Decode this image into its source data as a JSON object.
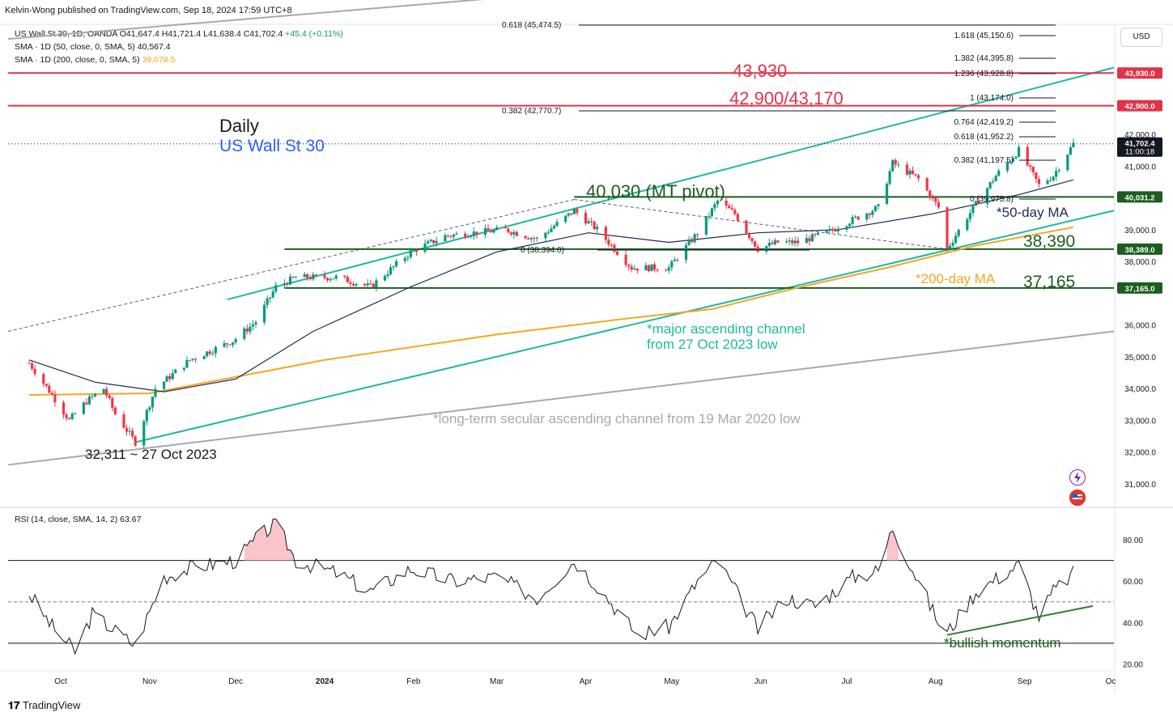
{
  "header": {
    "publisher": "Kelvin-Wong published on TradingView.com, Sep 18, 2024 17:59 UTC+8"
  },
  "legend": {
    "symbol": "US Wall St 30, 1D, OANDA",
    "o": "O41,647.4",
    "h": "H41,721.4",
    "l": "L41,638.4",
    "c": "C41,702.4",
    "chg": "+45.4 (+0.11%)",
    "sma50_label": "SMA · 1D (50, close, 0, SMA, 5)",
    "sma50_value": "40,567.4",
    "sma200_label": "SMA · 1D (200, close, 0, SMA, 5)",
    "sma200_value": "39,078.5",
    "rsi_label": "RSI (14, close, SMA, 14, 2)",
    "rsi_value": "63.67"
  },
  "currency": "USD",
  "footer": {
    "brand": "TradingView"
  },
  "colors": {
    "up": "#089981",
    "down": "#f23645",
    "sma50": "#1e2a5a",
    "sma200": "#f5a623",
    "channel": "#1eb8a2",
    "longterm": "#a8a8b0",
    "resistance": "#e0334a",
    "support": "#1b5e20",
    "rsi": "#131722"
  },
  "annotations": {
    "daily": "Daily",
    "instrument": "US Wall St 30",
    "r1": "43,930",
    "r2": "42,900/43,170",
    "pivot": "40,030 (MT pivot)",
    "ma50": "*50-day MA",
    "s1": "38,390",
    "ma200": "*200-day MA",
    "s2": "37,165",
    "channel1": "*major ascending channel",
    "channel2": "from 27 Oct 2023 low",
    "longterm": "*long-term secular ascending channel from 19 Mar 2020 low",
    "low": "32,311 ~ 27 Oct 2023",
    "rsi_note": "*bullish momentum"
  },
  "chart_data": [
    {
      "type": "candlestick",
      "title": "US Wall St 30",
      "x_labels": [
        "Oct",
        "Nov",
        "Dec",
        "2024",
        "Feb",
        "Mar",
        "Apr",
        "May",
        "Jun",
        "Jul",
        "Aug",
        "Sep",
        "Oc"
      ],
      "y_ticks": [
        "42,000.0",
        "41,000.0",
        "39,000.0",
        "38,000.0",
        "36,000.0",
        "35,000.0",
        "34,000.0",
        "33,000.0",
        "32,000.0",
        "31,000.0"
      ],
      "ylim": [
        30500,
        45500
      ],
      "price_path": [
        [
          "2023-09-20",
          34800
        ],
        [
          "2023-09-28",
          33800
        ],
        [
          "2023-10-04",
          33000
        ],
        [
          "2023-10-10",
          33600
        ],
        [
          "2023-10-16",
          34000
        ],
        [
          "2023-10-20",
          33200
        ],
        [
          "2023-10-27",
          32311
        ],
        [
          "2023-11-03",
          34000
        ],
        [
          "2023-11-15",
          34900
        ],
        [
          "2023-11-30",
          35500
        ],
        [
          "2023-12-08",
          36100
        ],
        [
          "2023-12-15",
          37200
        ],
        [
          "2023-12-22",
          37500
        ],
        [
          "2024-01-05",
          37500
        ],
        [
          "2024-01-17",
          37200
        ],
        [
          "2024-01-31",
          38300
        ],
        [
          "2024-02-12",
          38800
        ],
        [
          "2024-02-22",
          38900
        ],
        [
          "2024-03-04",
          39000
        ],
        [
          "2024-03-15",
          38700
        ],
        [
          "2024-03-28",
          39600
        ],
        [
          "2024-04-05",
          39000
        ],
        [
          "2024-04-17",
          37800
        ],
        [
          "2024-04-30",
          37800
        ],
        [
          "2024-05-10",
          38900
        ],
        [
          "2024-05-17",
          39900
        ],
        [
          "2024-05-23",
          39500
        ],
        [
          "2024-05-31",
          38400
        ],
        [
          "2024-06-07",
          38600
        ],
        [
          "2024-06-14",
          38600
        ],
        [
          "2024-06-24",
          38900
        ],
        [
          "2024-07-05",
          39400
        ],
        [
          "2024-07-12",
          39700
        ],
        [
          "2024-07-17",
          41100
        ],
        [
          "2024-07-26",
          40600
        ],
        [
          "2024-08-02",
          39700
        ],
        [
          "2024-08-05",
          38390
        ],
        [
          "2024-08-12",
          39400
        ],
        [
          "2024-08-22",
          40700
        ],
        [
          "2024-08-30",
          41500
        ],
        [
          "2024-09-06",
          40400
        ],
        [
          "2024-09-11",
          40700
        ],
        [
          "2024-09-18",
          41702
        ]
      ],
      "sma50_path": [
        [
          "2023-09-20",
          34900
        ],
        [
          "2023-10-13",
          34200
        ],
        [
          "2023-11-06",
          33900
        ],
        [
          "2023-12-01",
          34300
        ],
        [
          "2023-12-28",
          35800
        ],
        [
          "2024-01-31",
          37200
        ],
        [
          "2024-03-01",
          38300
        ],
        [
          "2024-04-02",
          38900
        ],
        [
          "2024-04-30",
          38600
        ],
        [
          "2024-05-31",
          38900
        ],
        [
          "2024-06-28",
          39000
        ],
        [
          "2024-07-31",
          39500
        ],
        [
          "2024-08-30",
          40100
        ],
        [
          "2024-09-18",
          40567
        ]
      ],
      "sma200_path": [
        [
          "2023-09-20",
          33800
        ],
        [
          "2023-11-01",
          33850
        ],
        [
          "2024-01-01",
          34900
        ],
        [
          "2024-03-01",
          35700
        ],
        [
          "2024-04-15",
          36200
        ],
        [
          "2024-05-15",
          36500
        ],
        [
          "2024-06-15",
          37200
        ],
        [
          "2024-07-15",
          37800
        ],
        [
          "2024-08-15",
          38500
        ],
        [
          "2024-09-18",
          39078
        ]
      ],
      "horizontal_levels": [
        {
          "label": "43,930.0",
          "value": 43930,
          "kind": "resistance"
        },
        {
          "label": "42,900.0",
          "value": 42900,
          "kind": "resistance"
        },
        {
          "label": "40,031.2",
          "value": 40031,
          "kind": "support"
        },
        {
          "label": "38,389.0",
          "value": 38389,
          "kind": "support"
        },
        {
          "label": "37,165.0",
          "value": 37165,
          "kind": "support"
        }
      ],
      "last_price": {
        "label": "41,702.4",
        "countdown": "11:00:18",
        "value": 41702
      },
      "fib_levels_right": [
        "1.618 (45,150.6)",
        "1.382 (44,395.8)",
        "1.236 (43,928.8)",
        "1 (43,174.0)",
        "0.764 (42,419.2)",
        "0.618 (41,952.2)",
        "0.382 (41,197.5)",
        "0 (39,975.8)"
      ],
      "fib_levels_left": [
        "0.618 (45,474.5)",
        "0.382 (42,770.7)",
        "0 (38,394.0)"
      ]
    },
    {
      "type": "line",
      "title": "RSI (14, close, SMA, 14, 2)",
      "y_ticks": [
        "80.00",
        "60.00",
        "40.00",
        "20.00"
      ],
      "ylim": [
        17,
        93
      ],
      "bands": [
        70,
        50,
        30
      ],
      "values_path": [
        [
          "2023-09-20",
          54
        ],
        [
          "2023-09-28",
          38
        ],
        [
          "2023-10-06",
          26
        ],
        [
          "2023-10-12",
          44
        ],
        [
          "2023-10-18",
          38
        ],
        [
          "2023-10-27",
          29
        ],
        [
          "2023-11-06",
          62
        ],
        [
          "2023-11-17",
          67
        ],
        [
          "2023-12-01",
          70
        ],
        [
          "2023-12-08",
          80
        ],
        [
          "2023-12-15",
          88
        ],
        [
          "2023-12-22",
          70
        ],
        [
          "2024-01-05",
          64
        ],
        [
          "2024-01-17",
          55
        ],
        [
          "2024-01-31",
          66
        ],
        [
          "2024-02-15",
          60
        ],
        [
          "2024-03-01",
          62
        ],
        [
          "2024-03-15",
          52
        ],
        [
          "2024-03-28",
          70
        ],
        [
          "2024-04-05",
          58
        ],
        [
          "2024-04-19",
          34
        ],
        [
          "2024-04-30",
          38
        ],
        [
          "2024-05-10",
          60
        ],
        [
          "2024-05-17",
          70
        ],
        [
          "2024-05-31",
          37
        ],
        [
          "2024-06-10",
          52
        ],
        [
          "2024-06-20",
          48
        ],
        [
          "2024-07-03",
          62
        ],
        [
          "2024-07-12",
          65
        ],
        [
          "2024-07-17",
          86
        ],
        [
          "2024-07-26",
          60
        ],
        [
          "2024-08-02",
          40
        ],
        [
          "2024-08-05",
          35
        ],
        [
          "2024-08-15",
          55
        ],
        [
          "2024-08-30",
          68
        ],
        [
          "2024-09-06",
          43
        ],
        [
          "2024-09-11",
          55
        ],
        [
          "2024-09-18",
          63.67
        ]
      ]
    }
  ]
}
